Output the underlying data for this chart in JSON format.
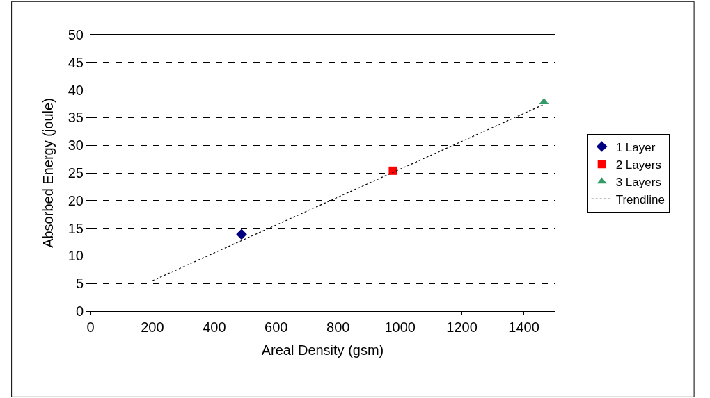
{
  "chart_data": {
    "type": "scatter",
    "xlabel": "Areal Density (gsm)",
    "ylabel": "Absorbed Energy (joule)",
    "xlim": [
      0,
      1500
    ],
    "xticks": [
      0,
      200,
      400,
      600,
      800,
      1000,
      1200,
      1400
    ],
    "ylim": [
      0,
      50
    ],
    "yticks": [
      0,
      5,
      10,
      15,
      20,
      25,
      30,
      35,
      40,
      45,
      50
    ],
    "grid": "y",
    "legend": "right",
    "series": [
      {
        "name": "1 Layer",
        "color": "#000080",
        "marker": "diamond",
        "x": [
          488
        ],
        "values": [
          13.9
        ]
      },
      {
        "name": "2 Layers",
        "color": "#ff0000",
        "marker": "square",
        "x": [
          977
        ],
        "values": [
          25.4
        ]
      },
      {
        "name": "3 Layers",
        "color": "#339966",
        "marker": "triangle",
        "x": [
          1465
        ],
        "values": [
          37.8
        ]
      },
      {
        "name": "Trendline",
        "type": "line",
        "color": "#000000",
        "line_style": "dotted",
        "marker": "none",
        "x": [
          200,
          1465
        ],
        "values": [
          5.5,
          37.4
        ]
      }
    ]
  }
}
